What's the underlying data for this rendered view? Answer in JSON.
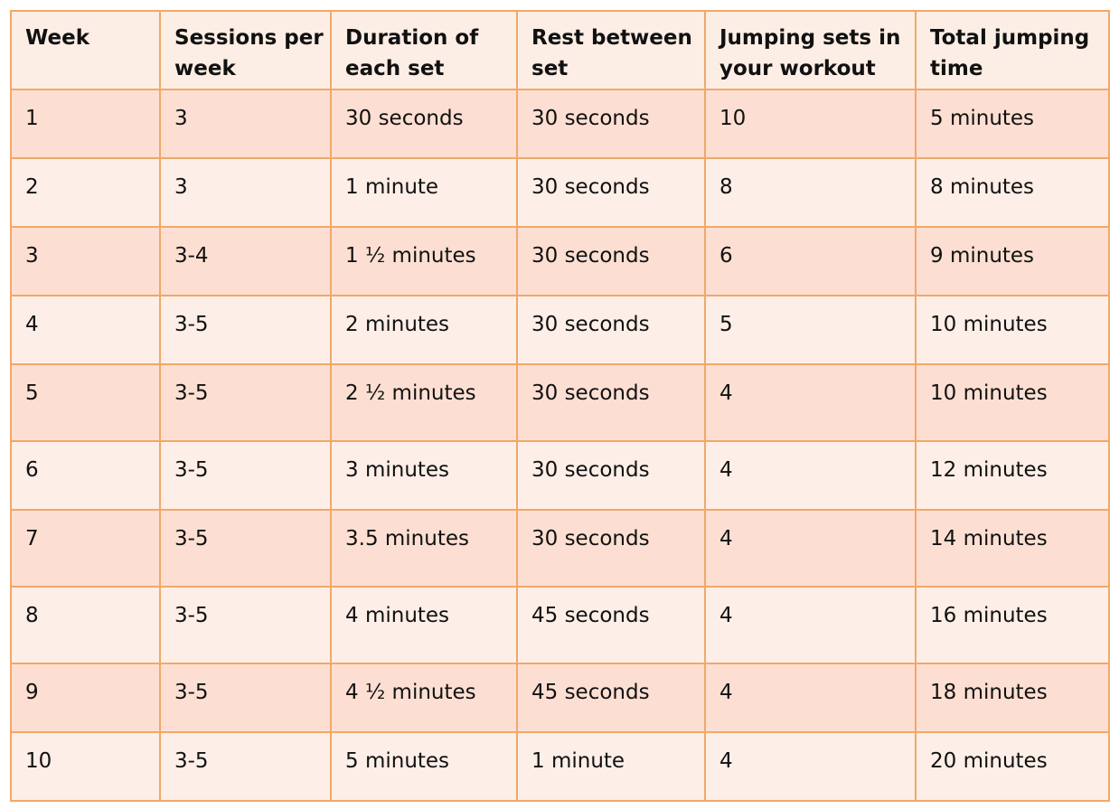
{
  "table": {
    "headers": [
      "Week",
      "Sessions per week",
      "Duration of each set",
      "Rest between set",
      "Jumping sets in your workout",
      "Total jumping time"
    ],
    "header_lines": [
      [
        "Week",
        ""
      ],
      [
        "Sessions per",
        "week"
      ],
      [
        "Duration of",
        "each set"
      ],
      [
        "Rest between",
        "set"
      ],
      [
        "Jumping sets in",
        "your workout"
      ],
      [
        "Total jumping",
        "time"
      ]
    ],
    "rows": [
      [
        "1",
        "3",
        "30 seconds",
        "30 seconds",
        "10",
        "5 minutes"
      ],
      [
        "2",
        "3",
        "1 minute",
        "30 seconds",
        "8",
        "8 minutes"
      ],
      [
        "3",
        "3-4",
        "1 ½ minutes",
        "30 seconds",
        "6",
        "9 minutes"
      ],
      [
        "4",
        "3-5",
        "2 minutes",
        "30 seconds",
        "5",
        "10 minutes"
      ],
      [
        "5",
        "3-5",
        "2 ½ minutes",
        "30 seconds",
        "4",
        "10 minutes"
      ],
      [
        "6",
        "3-5",
        "3 minutes",
        "30 seconds",
        "4",
        "12 minutes"
      ],
      [
        "7",
        "3-5",
        "3.5 minutes",
        "30 seconds",
        "4",
        "14 minutes"
      ],
      [
        "8",
        "3-5",
        "4 minutes",
        "45 seconds",
        "4",
        "16 minutes"
      ],
      [
        "9",
        "3-5",
        "4 ½ minutes",
        "45 seconds",
        "4",
        "18 minutes"
      ],
      [
        "10",
        "3-5",
        "5 minutes",
        "1 minute",
        "4",
        "20 minutes"
      ]
    ]
  },
  "colors": {
    "border": "#f0a869",
    "header_bg": "#fdeee5",
    "row_odd_bg": "#fcdfd2",
    "row_even_bg": "#fdeee7"
  }
}
